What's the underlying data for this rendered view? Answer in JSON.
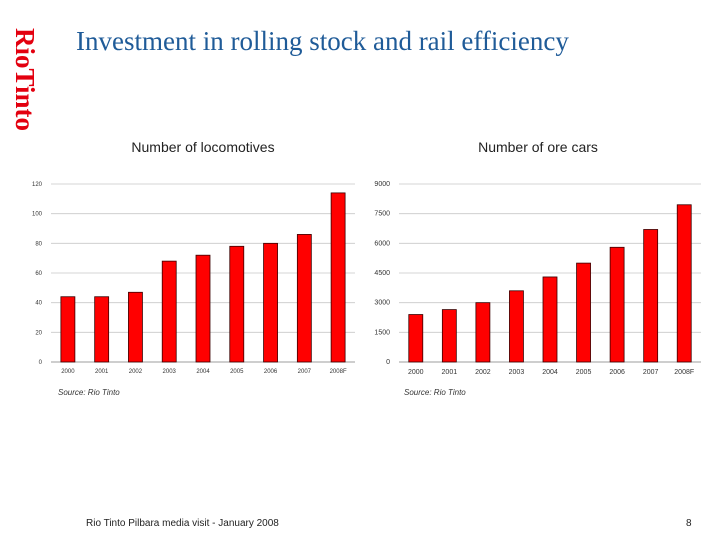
{
  "brand": {
    "name": "RioTinto",
    "color": "#e3000f"
  },
  "slide": {
    "title": "Investment in rolling stock and rail efficiency",
    "footer": "Rio Tinto Pilbara media visit - January 2008",
    "page_number": "8"
  },
  "chart_data": [
    {
      "type": "bar",
      "title": "Number of locomotives",
      "categories": [
        "2000",
        "2001",
        "2002",
        "2003",
        "2004",
        "2005",
        "2006",
        "2007",
        "2008F"
      ],
      "values": [
        44,
        44,
        47,
        68,
        72,
        78,
        80,
        86,
        114
      ],
      "ylim": [
        0,
        120
      ],
      "yticks": [
        0,
        20,
        40,
        60,
        80,
        100,
        120
      ],
      "xlabel": "",
      "ylabel": "",
      "grid": true,
      "bar_color": "#ff0000",
      "source": "Source: Rio Tinto"
    },
    {
      "type": "bar",
      "title": "Number of ore cars",
      "categories": [
        "2000",
        "2001",
        "2002",
        "2003",
        "2004",
        "2005",
        "2006",
        "2007",
        "2008F"
      ],
      "values": [
        2400,
        2650,
        3000,
        3600,
        4300,
        5000,
        5800,
        6700,
        7950
      ],
      "ylim": [
        0,
        9000
      ],
      "yticks": [
        0,
        1500,
        3000,
        4500,
        6000,
        7500,
        9000
      ],
      "xlabel": "",
      "ylabel": "",
      "grid": true,
      "bar_color": "#ff0000",
      "source": "Source: Rio Tinto"
    }
  ]
}
